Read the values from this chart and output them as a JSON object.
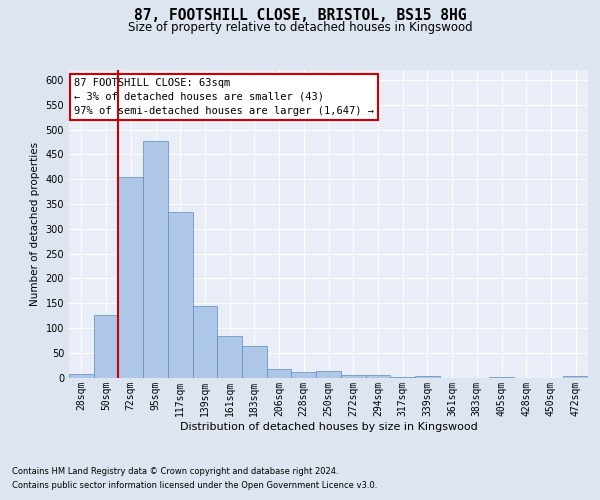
{
  "title1": "87, FOOTSHILL CLOSE, BRISTOL, BS15 8HG",
  "title2": "Size of property relative to detached houses in Kingswood",
  "xlabel": "Distribution of detached houses by size in Kingswood",
  "ylabel": "Number of detached properties",
  "bar_labels": [
    "28sqm",
    "50sqm",
    "72sqm",
    "95sqm",
    "117sqm",
    "139sqm",
    "161sqm",
    "183sqm",
    "206sqm",
    "228sqm",
    "250sqm",
    "272sqm",
    "294sqm",
    "317sqm",
    "339sqm",
    "361sqm",
    "383sqm",
    "405sqm",
    "428sqm",
    "450sqm",
    "472sqm"
  ],
  "bar_heights": [
    8,
    127,
    404,
    477,
    333,
    145,
    83,
    64,
    18,
    11,
    13,
    6,
    5,
    1,
    4,
    0,
    0,
    1,
    0,
    0,
    4
  ],
  "bar_color": "#aec6e8",
  "bar_edge_color": "#5b8db8",
  "annotation_box_text": "87 FOOTSHILL CLOSE: 63sqm\n← 3% of detached houses are smaller (43)\n97% of semi-detached houses are larger (1,647) →",
  "vline_x_index": 1.5,
  "ylim": [
    0,
    620
  ],
  "yticks": [
    0,
    50,
    100,
    150,
    200,
    250,
    300,
    350,
    400,
    450,
    500,
    550,
    600
  ],
  "footer_line1": "Contains HM Land Registry data © Crown copyright and database right 2024.",
  "footer_line2": "Contains public sector information licensed under the Open Government Licence v3.0.",
  "bg_color": "#dde5f0",
  "plot_bg_color": "#e8edf7",
  "grid_color": "#ffffff",
  "vline_color": "#cc0000",
  "box_edge_color": "#cc0000",
  "box_face_color": "#ffffff",
  "title1_fontsize": 10.5,
  "title2_fontsize": 8.5,
  "ylabel_fontsize": 7.5,
  "xlabel_fontsize": 8,
  "tick_fontsize": 7,
  "footer_fontsize": 6,
  "annot_fontsize": 7.5
}
